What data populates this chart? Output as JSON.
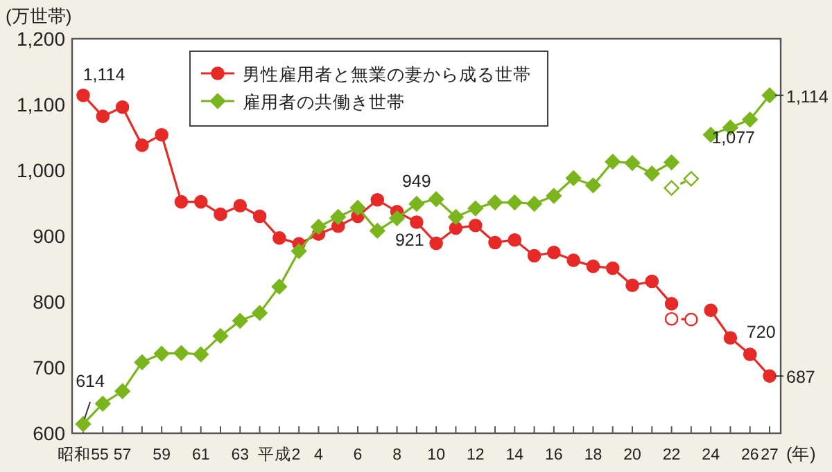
{
  "chart_data": {
    "type": "line",
    "ylabel": "(万世帯)",
    "xlabel": "(年)",
    "categories": [
      "昭和55",
      null,
      "57",
      null,
      "59",
      null,
      "61",
      null,
      "63",
      null,
      "平成2",
      null,
      "4",
      null,
      "6",
      null,
      "8",
      null,
      "10",
      null,
      "12",
      null,
      "14",
      null,
      "16",
      null,
      "18",
      null,
      "20",
      null,
      "22",
      null,
      "24",
      null,
      "26",
      "27"
    ],
    "series": [
      {
        "name": "男性雇用者と無業の妻から成る世帯",
        "color": "#e52a27",
        "marker": "circle",
        "line_style": "solid",
        "values": [
          1114,
          1082,
          1096,
          1038,
          1054,
          952,
          952,
          933,
          946,
          930,
          897,
          888,
          903,
          915,
          930,
          955,
          937,
          921,
          889,
          912,
          916,
          890,
          894,
          870,
          875,
          863,
          854,
          851,
          825,
          831,
          797,
          null,
          787,
          745,
          720,
          687
        ]
      },
      {
        "name": "雇用者の共働き世帯",
        "color": "#7ab51d",
        "marker": "diamond",
        "line_style": "solid",
        "values": [
          614,
          645,
          664,
          708,
          721,
          722,
          720,
          748,
          771,
          783,
          823,
          877,
          914,
          929,
          943,
          908,
          927,
          949,
          956,
          929,
          942,
          951,
          951,
          949,
          961,
          988,
          977,
          1013,
          1011,
          995,
          1012,
          null,
          1054,
          1065,
          1077,
          1114
        ]
      },
      {
        "color": "#e52a27",
        "marker": "circle",
        "line_style": "dashed",
        "values": [
          null,
          null,
          null,
          null,
          null,
          null,
          null,
          null,
          null,
          null,
          null,
          null,
          null,
          null,
          null,
          null,
          null,
          null,
          null,
          null,
          null,
          null,
          null,
          null,
          null,
          null,
          null,
          null,
          null,
          null,
          774,
          773,
          null,
          null,
          null,
          null
        ]
      },
      {
        "color": "#7ab51d",
        "marker": "diamond",
        "line_style": "dashed",
        "values": [
          null,
          null,
          null,
          null,
          null,
          null,
          null,
          null,
          null,
          null,
          null,
          null,
          null,
          null,
          null,
          null,
          null,
          null,
          null,
          null,
          null,
          null,
          null,
          null,
          null,
          null,
          null,
          null,
          null,
          null,
          973,
          987,
          null,
          null,
          null,
          null
        ]
      }
    ],
    "ylim": [
      600,
      1200
    ],
    "yticks": [
      600,
      700,
      800,
      900,
      {
        "value": 1000,
        "label": "1,000"
      },
      {
        "value": 1100,
        "label": "1,100"
      },
      {
        "value": 1200,
        "label": "1,200"
      }
    ],
    "annotations": [
      {
        "text": "1,114",
        "x": "昭和55",
        "y": 1114
      },
      {
        "text": "614",
        "x": "昭和55",
        "y": 614
      },
      {
        "text": "949",
        "y": 949
      },
      {
        "text": "921",
        "y": 921
      },
      {
        "text": "1,077",
        "x": "26",
        "y": 1077
      },
      {
        "text": "1,114",
        "x": "27",
        "y": 1114
      },
      {
        "text": "720",
        "x": "26",
        "y": 720
      },
      {
        "text": "687",
        "x": "27",
        "y": 687
      }
    ],
    "legend": "top left",
    "grid": false
  }
}
